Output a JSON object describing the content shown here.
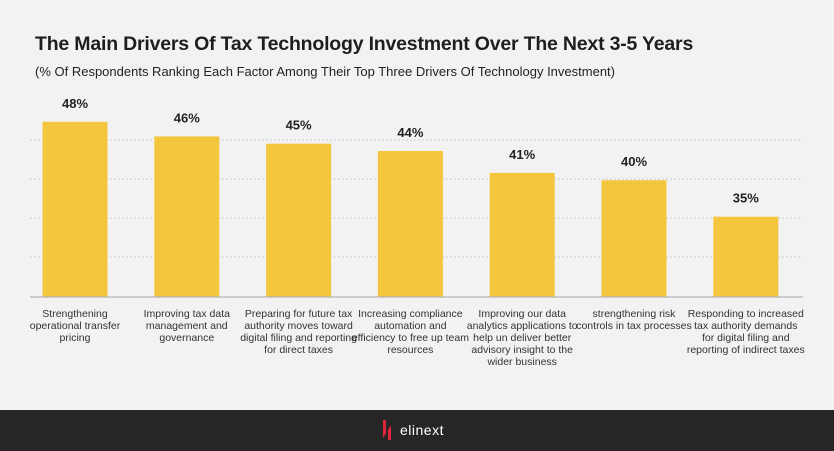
{
  "chart_data": {
    "type": "bar",
    "title": "The Main Drivers Of Tax Technology Investment Over The Next 3-5 Years",
    "subtitle": "(% Of Respondents Ranking Each Factor Among Their Top Three Drivers Of Technology Investment)",
    "categories": [
      "Strengthening operational transfer pricing",
      "Improving tax data management and governance",
      "Preparing for future tax authority moves toward digital filing and reporting for direct taxes",
      "Increasing compliance automation and efficiency to free up team resources",
      "Improving our data analytics applications to help un deliver better advisory insight to the wider business",
      "strengthening risk controls in tax processes",
      "Responding to increased tax authority demands for digital filing and reporting of indirect taxes"
    ],
    "values": [
      48,
      46,
      45,
      44,
      41,
      40,
      35
    ],
    "labels": [
      "48%",
      "46%",
      "45%",
      "44%",
      "41%",
      "40%",
      "35%"
    ],
    "unit": "%",
    "ylim": [
      24,
      50
    ],
    "grid": true,
    "legend": "none",
    "colors": {
      "bar": "#f4c63d",
      "grid": "#cfcfcf"
    }
  },
  "footer": {
    "logo_text": "elinext"
  }
}
